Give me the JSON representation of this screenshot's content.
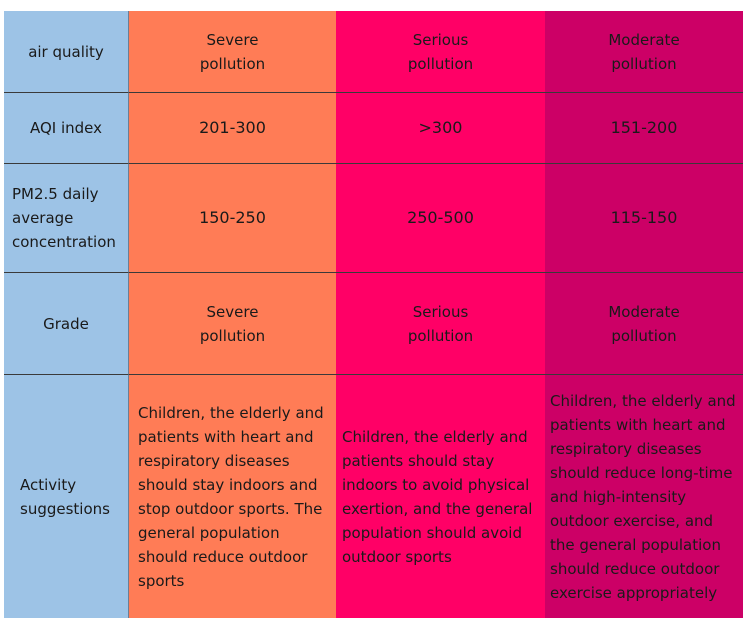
{
  "table": {
    "rows": [
      {
        "header": "air quality",
        "cells": [
          "Severe\npollution",
          "Serious\npollution",
          "Moderate\npollution"
        ]
      },
      {
        "header": "AQI index",
        "cells": [
          "201-300",
          ">300",
          "151-200"
        ]
      },
      {
        "header": "PM2.5 daily\naverage\nconcentration",
        "cells": [
          "150-250",
          "250-500",
          "115-150"
        ]
      },
      {
        "header": "Grade",
        "cells": [
          "Severe\npollution",
          "Serious\npollution",
          "Moderate\npollution"
        ]
      },
      {
        "header": "Activity\nsuggestions",
        "cells": [
          "Children, the elderly and patients with heart and respiratory diseases should stay indoors and stop outdoor sports. The general population should reduce outdoor sports",
          "Children, the elderly and patients should stay indoors to avoid physical exertion, and the general population should avoid outdoor sports",
          "Children, the elderly and patients with heart and respiratory diseases should reduce long-time and high-intensity outdoor exercise, and the general population should reduce outdoor exercise appropriately"
        ]
      }
    ]
  },
  "colors": {
    "header_column": "#9dc3e6",
    "severe": "#ff7c56",
    "serious": "#ff0066",
    "moderate": "#cc0066"
  }
}
